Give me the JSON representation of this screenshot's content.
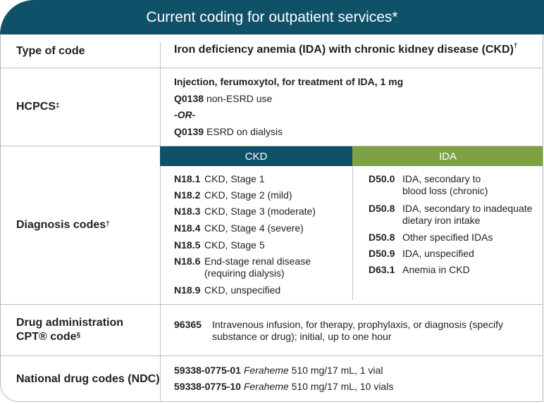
{
  "title": "Current coding for outpatient services*",
  "header": {
    "label": "Type of code",
    "value": "Iron deficiency anemia (IDA) with chronic kidney disease (CKD)",
    "value_sup": "†"
  },
  "hcpcs": {
    "label": "HCPCS",
    "label_sup": "‡",
    "description": "Injection, ferumoxytol, for treatment of IDA, 1 mg",
    "code1": "Q0138",
    "code1_desc": "non-ESRD use",
    "or": "-OR-",
    "code2": "Q0139",
    "code2_desc": "ESRD on dialysis"
  },
  "diagnosis": {
    "label": "Diagnosis codes",
    "label_sup": "†",
    "ckd_header": "CKD",
    "ida_header": "IDA",
    "ckd": [
      {
        "code": "N18.1",
        "desc": "CKD, Stage 1"
      },
      {
        "code": "N18.2",
        "desc": "CKD, Stage 2 (mild)"
      },
      {
        "code": "N18.3",
        "desc": "CKD, Stage 3 (moderate)"
      },
      {
        "code": "N18.4",
        "desc": "CKD, Stage 4 (severe)"
      },
      {
        "code": "N18.5",
        "desc": "CKD, Stage 5"
      },
      {
        "code": "N18.6",
        "desc": "End-stage renal disease",
        "desc2": "(requiring dialysis)"
      },
      {
        "code": "N18.9",
        "desc": "CKD, unspecified"
      }
    ],
    "ida": [
      {
        "code": "D50.0",
        "desc": "IDA, secondary to",
        "desc2": "blood loss (chronic)"
      },
      {
        "code": "D50.8",
        "desc": "IDA, secondary to inadequate",
        "desc2": "dietary iron intake"
      },
      {
        "code": "D50.8",
        "desc": "Other specified IDAs"
      },
      {
        "code": "D50.9",
        "desc": "IDA, unspecified"
      },
      {
        "code": "D63.1",
        "desc": "Anemia in CKD"
      }
    ]
  },
  "drug_admin": {
    "label_line1": "Drug administration",
    "label_line2": "CPT® code",
    "label_sup": "§",
    "code": "96365",
    "desc_line1": "Intravenous infusion, for therapy, prophylaxis, or diagnosis (specify",
    "desc_line2": "substance or drug); initial, up to one hour"
  },
  "ndc": {
    "label": "National drug codes (NDC)",
    "items": [
      {
        "code": "59338-0775-01",
        "brand": "Feraheme",
        "detail": "510 mg/17 mL, 1 vial"
      },
      {
        "code": "59338-0775-10",
        "brand": "Feraheme",
        "detail": "510 mg/17 mL, 10 vials"
      }
    ]
  },
  "colors": {
    "teal": "#10516a",
    "green": "#7da143"
  }
}
